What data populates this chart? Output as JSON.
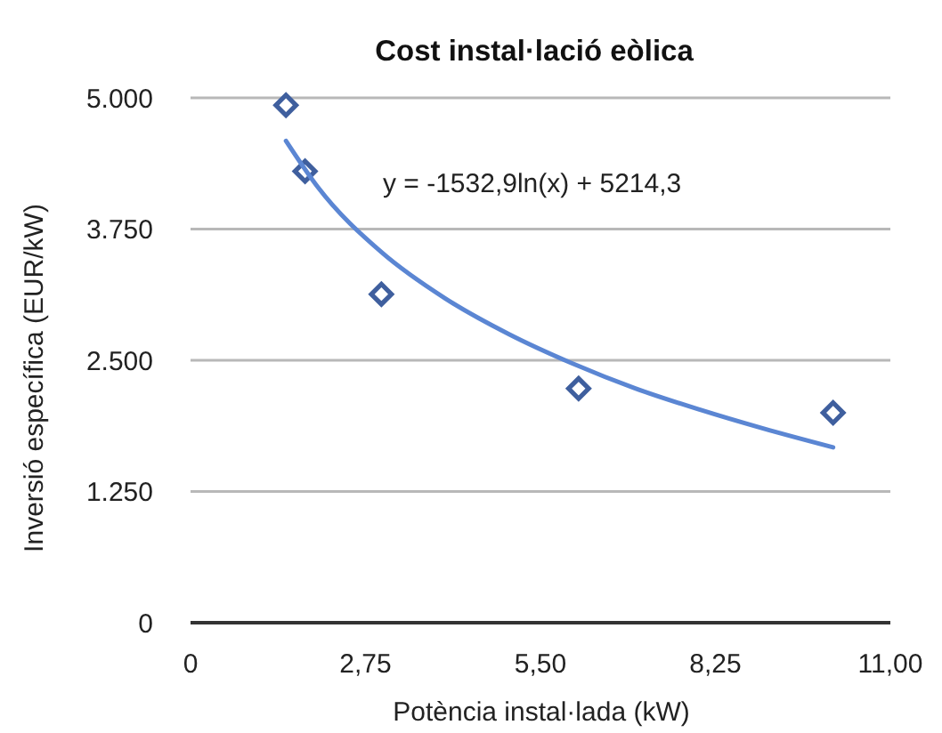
{
  "chart_data": {
    "type": "scatter",
    "title": "Cost instal·lació eòlica",
    "xlabel": "Potència instal·lada (kW)",
    "ylabel": "Inversió específica (EUR/kW)",
    "annotations": [
      "y = -1532,9ln(x) + 5214,3"
    ],
    "series": [
      {
        "color": "#3f5f9e",
        "marker": "diamond",
        "x": [
          1.5,
          1.8,
          3.0,
          6.1,
          10.1
        ],
        "values": [
          4930,
          4300,
          3130,
          2230,
          2000
        ]
      },
      {
        "type": "line",
        "color": "#5b86d3",
        "marker": "none",
        "x": [
          1.5,
          2,
          3,
          4,
          5,
          6,
          7,
          8,
          9,
          10.1
        ],
        "values": [
          4590,
          4150,
          3530,
          3090,
          2750,
          2470,
          2230,
          2030,
          1850,
          1670
        ]
      }
    ],
    "xlim": [
      0,
      11
    ],
    "ylim": [
      0,
      5000
    ],
    "xticks": [
      0,
      {
        "value": 2.75,
        "label": "2,75"
      },
      {
        "value": 5.5,
        "label": "5,50"
      },
      {
        "value": 8.25,
        "label": "8,25"
      },
      {
        "value": 11,
        "label": "11,00"
      }
    ],
    "yticks": [
      0,
      {
        "value": 1250,
        "label": "1.250"
      },
      {
        "value": 2500,
        "label": "2.500"
      },
      {
        "value": 3750,
        "label": "3.750"
      },
      {
        "value": 5000,
        "label": "5.000"
      }
    ],
    "grid": "y"
  }
}
